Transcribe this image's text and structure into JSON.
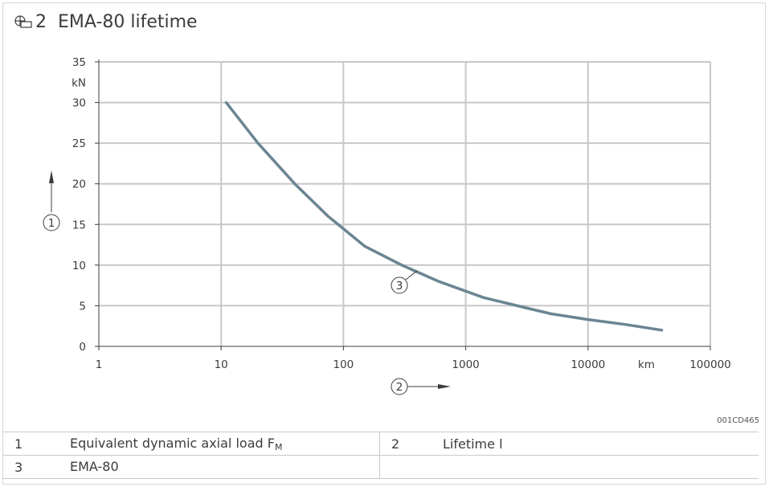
{
  "figure": {
    "number": "2",
    "title": "EMA-80 lifetime",
    "code": "001CD465"
  },
  "chart_data": {
    "type": "line",
    "x_scale": "log",
    "xlim": [
      1,
      100000
    ],
    "ylim": [
      0,
      35
    ],
    "x_ticks": [
      "1",
      "10",
      "100",
      "1000",
      "10000",
      "100000"
    ],
    "x_unit": "km",
    "y_ticks": [
      "0",
      "5",
      "10",
      "15",
      "20",
      "25",
      "30",
      "35"
    ],
    "y_unit": "kN",
    "grid": true,
    "axis_markers": {
      "y": "1",
      "x": "2"
    },
    "series": [
      {
        "name": "EMA-80",
        "marker_label": "3",
        "color": "#6a8592",
        "x": [
          11,
          20,
          40,
          75,
          150,
          300,
          600,
          1400,
          3000,
          5000,
          10000,
          20000,
          40000
        ],
        "y": [
          30,
          25,
          20,
          16,
          12.3,
          10,
          8,
          6,
          4.8,
          4,
          3.3,
          2.7,
          2
        ]
      }
    ]
  },
  "legend": [
    {
      "num": "1",
      "text": "Equivalent dynamic axial load F",
      "sub": "M",
      "num2": "2",
      "text2": "Lifetime l"
    },
    {
      "num": "3",
      "text": "EMA-80",
      "sub": "",
      "num2": "",
      "text2": ""
    }
  ]
}
